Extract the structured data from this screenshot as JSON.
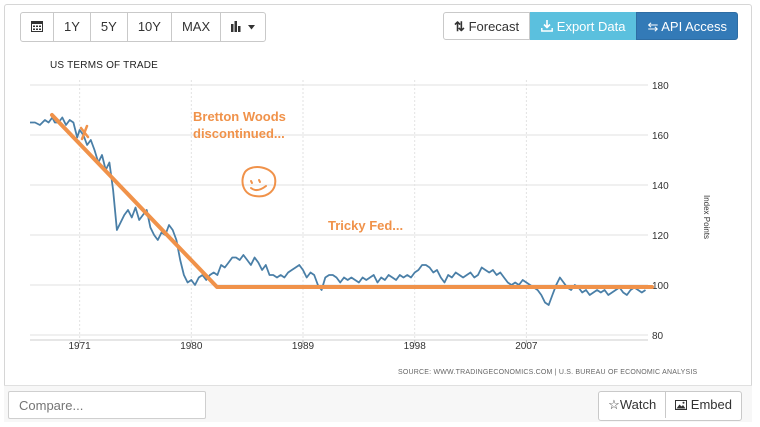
{
  "toolbar": {
    "calendar_icon": "calendar-icon",
    "ranges": [
      "1Y",
      "5Y",
      "10Y",
      "MAX"
    ],
    "chart_type_icon": "bar-chart-icon",
    "forecast_label": "Forecast",
    "export_label": "Export Data",
    "api_label": "API Access"
  },
  "source_text": "SOURCE: WWW.TRADINGECONOMICS.COM | U.S. BUREAU OF ECONOMIC ANALYSIS",
  "compare": {
    "placeholder": "Compare..."
  },
  "footer": {
    "watch_label": "Watch",
    "embed_label": "Embed"
  },
  "annotations": {
    "bretton_line1": "Bretton Woods",
    "bretton_line2": "discontinued...",
    "tricky_fed": "Tricky Fed..."
  },
  "colors": {
    "series": "#4a7fa7",
    "annotation": "#f0924a",
    "export": "#5bc0de",
    "api": "#337ab7"
  },
  "chart_data": {
    "type": "line",
    "title": "US TERMS OF TRADE",
    "ylabel": "Index Points",
    "xlabel": "",
    "x_ticks": [
      "1971",
      "1980",
      "1989",
      "1998",
      "2007"
    ],
    "y_ticks": [
      80,
      100,
      120,
      140,
      160,
      180
    ],
    "ylim": [
      78,
      182
    ],
    "xlim": [
      1967.0,
      2016.8
    ],
    "grid": true,
    "series": [
      {
        "values": [
          [
            1967.0,
            165
          ],
          [
            1967.4,
            165
          ],
          [
            1967.8,
            164
          ],
          [
            1968.2,
            166
          ],
          [
            1968.5,
            165
          ],
          [
            1968.8,
            167
          ],
          [
            1969.0,
            165
          ],
          [
            1969.3,
            165
          ],
          [
            1969.6,
            167
          ],
          [
            1969.9,
            164
          ],
          [
            1970.2,
            166
          ],
          [
            1970.5,
            165
          ],
          [
            1970.8,
            159
          ],
          [
            1971.0,
            162
          ],
          [
            1971.3,
            160
          ],
          [
            1971.6,
            156
          ],
          [
            1971.9,
            158
          ],
          [
            1972.2,
            154
          ],
          [
            1972.5,
            149
          ],
          [
            1972.8,
            152
          ],
          [
            1973.1,
            146
          ],
          [
            1973.4,
            149
          ],
          [
            1973.7,
            138
          ],
          [
            1974.0,
            122
          ],
          [
            1974.3,
            125
          ],
          [
            1974.6,
            128
          ],
          [
            1974.9,
            130
          ],
          [
            1975.2,
            127
          ],
          [
            1975.5,
            131
          ],
          [
            1975.8,
            126
          ],
          [
            1976.1,
            128
          ],
          [
            1976.4,
            130
          ],
          [
            1976.7,
            123
          ],
          [
            1977.0,
            120
          ],
          [
            1977.3,
            118
          ],
          [
            1977.6,
            121
          ],
          [
            1977.9,
            120
          ],
          [
            1978.2,
            124
          ],
          [
            1978.5,
            122
          ],
          [
            1978.8,
            118
          ],
          [
            1979.1,
            110
          ],
          [
            1979.4,
            104
          ],
          [
            1979.7,
            101
          ],
          [
            1980.0,
            102
          ],
          [
            1980.3,
            100
          ],
          [
            1980.6,
            103
          ],
          [
            1980.9,
            104
          ],
          [
            1981.2,
            102
          ],
          [
            1981.5,
            104
          ],
          [
            1981.8,
            105
          ],
          [
            1982.1,
            104
          ],
          [
            1982.4,
            108
          ],
          [
            1982.7,
            107
          ],
          [
            1983.0,
            109
          ],
          [
            1983.3,
            111
          ],
          [
            1983.6,
            111
          ],
          [
            1983.9,
            110
          ],
          [
            1984.2,
            112
          ],
          [
            1984.5,
            110
          ],
          [
            1984.8,
            108
          ],
          [
            1985.1,
            111
          ],
          [
            1985.4,
            109
          ],
          [
            1985.7,
            106
          ],
          [
            1986.0,
            108
          ],
          [
            1986.3,
            104
          ],
          [
            1986.6,
            104
          ],
          [
            1986.9,
            103
          ],
          [
            1987.2,
            104
          ],
          [
            1987.5,
            103
          ],
          [
            1987.8,
            105
          ],
          [
            1988.1,
            106
          ],
          [
            1988.4,
            107
          ],
          [
            1988.7,
            108
          ],
          [
            1989.0,
            106
          ],
          [
            1989.3,
            103
          ],
          [
            1989.6,
            105
          ],
          [
            1989.9,
            104
          ],
          [
            1990.2,
            100
          ],
          [
            1990.5,
            98
          ],
          [
            1990.8,
            103
          ],
          [
            1991.1,
            104
          ],
          [
            1991.4,
            104
          ],
          [
            1991.7,
            103
          ],
          [
            1992.0,
            101
          ],
          [
            1992.3,
            103
          ],
          [
            1992.6,
            102
          ],
          [
            1992.9,
            103
          ],
          [
            1993.2,
            102
          ],
          [
            1993.5,
            101
          ],
          [
            1993.8,
            103
          ],
          [
            1994.1,
            102
          ],
          [
            1994.4,
            103
          ],
          [
            1994.7,
            104
          ],
          [
            1995.0,
            101
          ],
          [
            1995.3,
            103
          ],
          [
            1995.6,
            102
          ],
          [
            1995.9,
            104
          ],
          [
            1996.2,
            103
          ],
          [
            1996.5,
            102
          ],
          [
            1996.8,
            104
          ],
          [
            1997.1,
            103
          ],
          [
            1997.4,
            104
          ],
          [
            1997.7,
            103
          ],
          [
            1998.0,
            105
          ],
          [
            1998.3,
            106
          ],
          [
            1998.6,
            108
          ],
          [
            1998.9,
            108
          ],
          [
            1999.2,
            107
          ],
          [
            1999.5,
            105
          ],
          [
            1999.8,
            106
          ],
          [
            2000.1,
            103
          ],
          [
            2000.4,
            101
          ],
          [
            2000.7,
            104
          ],
          [
            2001.0,
            103
          ],
          [
            2001.3,
            105
          ],
          [
            2001.6,
            104
          ],
          [
            2001.9,
            103
          ],
          [
            2002.2,
            104
          ],
          [
            2002.5,
            105
          ],
          [
            2002.8,
            103
          ],
          [
            2003.1,
            104
          ],
          [
            2003.4,
            107
          ],
          [
            2003.7,
            106
          ],
          [
            2004.0,
            105
          ],
          [
            2004.3,
            106
          ],
          [
            2004.6,
            104
          ],
          [
            2004.9,
            105
          ],
          [
            2005.2,
            103
          ],
          [
            2005.5,
            101
          ],
          [
            2005.8,
            100
          ],
          [
            2006.1,
            101
          ],
          [
            2006.4,
            100
          ],
          [
            2006.7,
            102
          ],
          [
            2007.0,
            101
          ],
          [
            2007.3,
            100
          ],
          [
            2007.6,
            99
          ],
          [
            2007.9,
            98
          ],
          [
            2008.2,
            96
          ],
          [
            2008.5,
            93
          ],
          [
            2008.8,
            92
          ],
          [
            2009.1,
            96
          ],
          [
            2009.4,
            100
          ],
          [
            2009.7,
            103
          ],
          [
            2010.0,
            101
          ],
          [
            2010.3,
            99
          ],
          [
            2010.6,
            98
          ],
          [
            2010.9,
            100
          ],
          [
            2011.2,
            99
          ],
          [
            2011.5,
            97
          ],
          [
            2011.8,
            98
          ],
          [
            2012.1,
            96
          ],
          [
            2012.4,
            97
          ],
          [
            2012.7,
            98
          ],
          [
            2013.0,
            97
          ],
          [
            2013.3,
            98
          ],
          [
            2013.6,
            96
          ],
          [
            2013.9,
            97
          ],
          [
            2014.2,
            98
          ],
          [
            2014.5,
            99
          ],
          [
            2014.8,
            97
          ],
          [
            2015.1,
            96
          ],
          [
            2015.4,
            98
          ],
          [
            2015.7,
            99
          ],
          [
            2016.0,
            98
          ],
          [
            2016.3,
            97
          ],
          [
            2016.6,
            98
          ]
        ]
      }
    ]
  }
}
